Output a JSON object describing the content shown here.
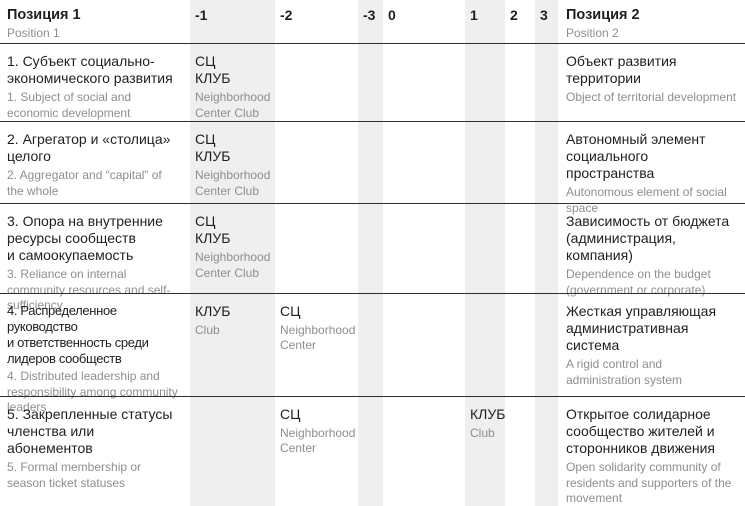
{
  "header": {
    "pos1": {
      "ru": "Позиция 1",
      "en": "Position 1"
    },
    "scale": [
      "-1",
      "-2",
      "-3",
      "0",
      "1",
      "2",
      "3"
    ],
    "pos2": {
      "ru": "Позиция 2",
      "en": "Position 2"
    }
  },
  "colors": {
    "stripe": "#efefef",
    "text": "#1f1f1f",
    "subtext": "#8e8e8e",
    "rule": "#2e2e2e"
  },
  "rows": [
    {
      "pos1": {
        "ru": "1. Субъект социально-\nэкономического развития",
        "en": "1. Subject of social and economic development"
      },
      "cells": {
        "m1": {
          "ru": "СЦ\nКЛУБ",
          "en": "Neighborhood Center Club"
        }
      },
      "pos2": {
        "ru": "Объект развития\nтерритории",
        "en": "Object of territorial development"
      }
    },
    {
      "pos1": {
        "ru": "2. Агрегатор и «столица»\nцелого",
        "en": "2. Aggregator and “capital” of the whole"
      },
      "cells": {
        "m1": {
          "ru": "СЦ\nКЛУБ",
          "en": "Neighborhood Center Club"
        }
      },
      "pos2": {
        "ru": "Автономный элемент\nсоциального пространства",
        "en": "Autonomous element of social space"
      }
    },
    {
      "pos1": {
        "ru": "3. Опора на внутренние\nресурсы сообществ\nи самоокупаемость",
        "en": "3. Reliance on internal community resources and self-sufficiency"
      },
      "cells": {
        "m1": {
          "ru": "СЦ\nКЛУБ",
          "en": "Neighborhood Center Club"
        }
      },
      "pos2": {
        "ru": "Зависимость от бюджета\n(администрация,\nкомпания)",
        "en": "Dependence on the budget (government or corporate)"
      }
    },
    {
      "pos1": {
        "ru": "4. Распределенное руководство\nи ответственность среди\nлидеров сообществ",
        "en": "4. Distributed leadership and responsibility among community leaders"
      },
      "cells": {
        "m1": {
          "ru": "КЛУБ",
          "en": "Club"
        },
        "m2": {
          "ru": "СЦ",
          "en": "Neighborhood Center"
        }
      },
      "pos2": {
        "ru": "Жесткая управляющая\nадминистративная\nсистема",
        "en": "A rigid control and administration system"
      }
    },
    {
      "pos1": {
        "ru": "5. Закрепленные статусы\nчленства или абонементов",
        "en": "5. Formal membership or season ticket statuses"
      },
      "cells": {
        "m2": {
          "ru": "СЦ",
          "en": "Neighborhood Center"
        },
        "p1": {
          "ru": "КЛУБ",
          "en": "Club"
        }
      },
      "pos2": {
        "ru": "Открытое солидарное\nсообщество жителей и\nсторонников движения",
        "en": "Open solidarity community of residents and supporters of the movement"
      }
    }
  ]
}
